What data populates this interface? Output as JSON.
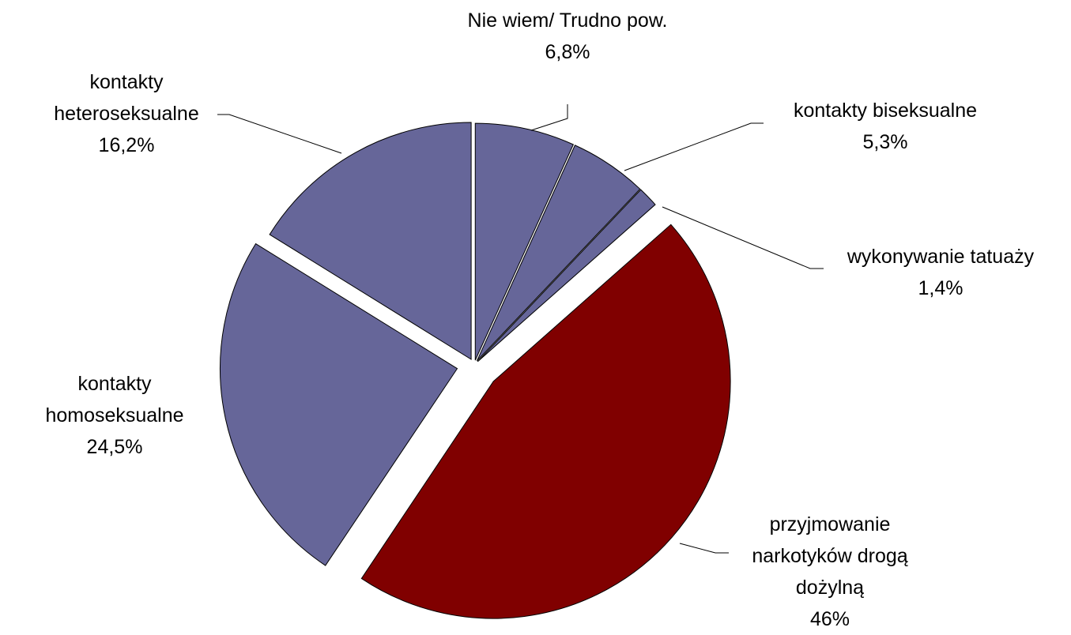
{
  "chart_data": {
    "type": "pie",
    "categories": [
      "Nie wiem/ Trudno pow.",
      "kontakty biseksualne",
      "wykonywanie tatuaży",
      "przyjmowanie narkotyków drogą dożylną",
      "kontakty homoseksualne",
      "kontakty heteroseksualne"
    ],
    "values": [
      6.8,
      5.3,
      1.4,
      46,
      24.5,
      16.2
    ],
    "value_labels": [
      "6,8%",
      "5,3%",
      "1,4%",
      "46%",
      "24,5%",
      "16,2%"
    ],
    "colors": [
      "#666699",
      "#666699",
      "#666699",
      "#800000",
      "#666699",
      "#666699"
    ]
  }
}
